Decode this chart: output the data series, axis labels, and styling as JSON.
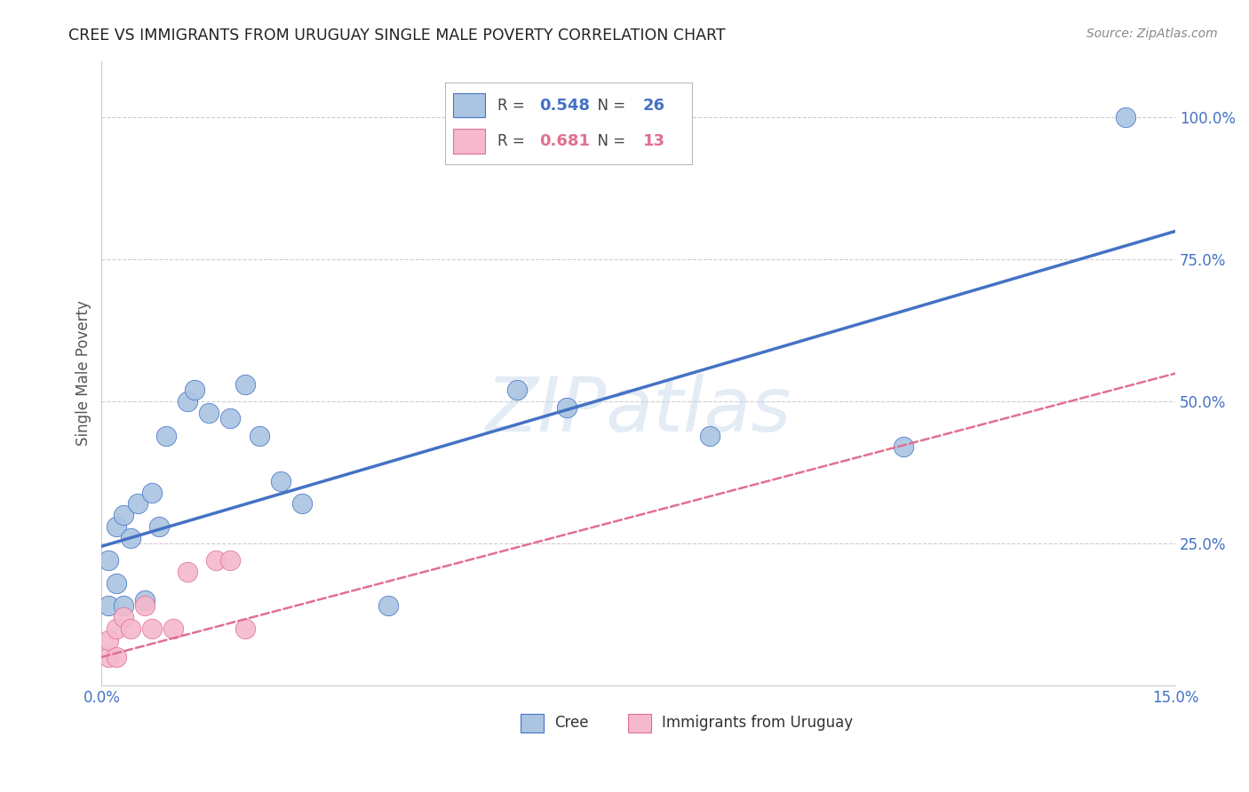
{
  "title": "CREE VS IMMIGRANTS FROM URUGUAY SINGLE MALE POVERTY CORRELATION CHART",
  "source": "Source: ZipAtlas.com",
  "ylabel_label": "Single Male Poverty",
  "xlim": [
    0.0,
    0.15
  ],
  "ylim": [
    0.0,
    1.1
  ],
  "xticks": [
    0.0,
    0.03,
    0.06,
    0.09,
    0.12,
    0.15
  ],
  "xtick_labels": [
    "0.0%",
    "",
    "",
    "",
    "",
    "15.0%"
  ],
  "ytick_positions": [
    0.25,
    0.5,
    0.75,
    1.0
  ],
  "ytick_labels": [
    "25.0%",
    "50.0%",
    "75.0%",
    "100.0%"
  ],
  "cree_color": "#aac4e2",
  "cree_edge_color": "#4472c4",
  "cree_line_color": "#4472c4",
  "uruguay_color": "#f5b8cc",
  "uruguay_edge_color": "#e07090",
  "uruguay_line_color": "#e07090",
  "cree_R": 0.548,
  "cree_N": 26,
  "uruguay_R": 0.681,
  "uruguay_N": 13,
  "cree_scatter_x": [
    0.001,
    0.001,
    0.002,
    0.002,
    0.003,
    0.003,
    0.004,
    0.005,
    0.006,
    0.007,
    0.008,
    0.009,
    0.012,
    0.013,
    0.015,
    0.018,
    0.02,
    0.022,
    0.025,
    0.028,
    0.04,
    0.058,
    0.065,
    0.085,
    0.112,
    0.143
  ],
  "cree_scatter_y": [
    0.14,
    0.22,
    0.18,
    0.28,
    0.14,
    0.3,
    0.26,
    0.32,
    0.15,
    0.34,
    0.28,
    0.44,
    0.5,
    0.52,
    0.48,
    0.47,
    0.53,
    0.44,
    0.36,
    0.32,
    0.14,
    0.52,
    0.49,
    0.44,
    0.42,
    1.0
  ],
  "uruguay_scatter_x": [
    0.001,
    0.001,
    0.002,
    0.002,
    0.003,
    0.004,
    0.006,
    0.007,
    0.01,
    0.012,
    0.016,
    0.018,
    0.02
  ],
  "uruguay_scatter_y": [
    0.05,
    0.08,
    0.1,
    0.05,
    0.12,
    0.1,
    0.14,
    0.1,
    0.1,
    0.2,
    0.22,
    0.22,
    0.1
  ],
  "cree_line_intercept": 0.245,
  "cree_line_slope": 3.7,
  "uruguay_line_intercept": 0.05,
  "uruguay_line_slope": 3.33,
  "watermark": "ZIPatlas",
  "background_color": "#ffffff",
  "grid_color": "#cccccc"
}
